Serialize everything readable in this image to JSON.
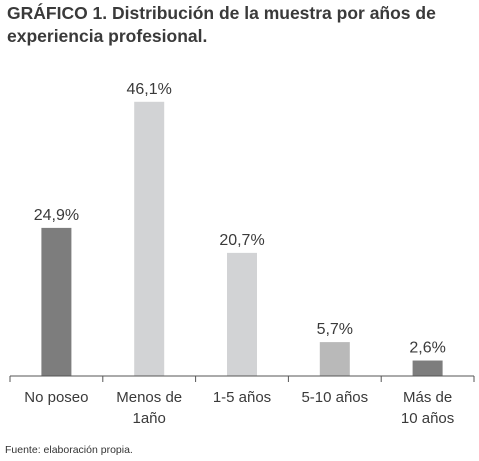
{
  "title": "GRÁFICO 1. Distribución de la muestra por años de experiencia profesional.",
  "source": "Fuente: elaboración propia.",
  "chart_data": {
    "type": "bar",
    "title": "GRÁFICO 1. Distribución de la muestra por años de experiencia profesional.",
    "categories": [
      [
        "No poseo"
      ],
      [
        "Menos de",
        "1año"
      ],
      [
        "1-5 años"
      ],
      [
        "5-10 años"
      ],
      [
        "Más de",
        "10 años"
      ]
    ],
    "values": [
      24.9,
      46.1,
      20.7,
      5.7,
      2.6
    ],
    "value_labels": [
      "24,9%",
      "46,1%",
      "20,7%",
      "5,7%",
      "2,6%"
    ],
    "colors": [
      "#7d7d7d",
      "#d2d3d5",
      "#d2d3d5",
      "#b9b9b9",
      "#7d7d7d"
    ],
    "xlabel": "",
    "ylabel": "",
    "ylim": [
      0,
      50
    ],
    "grid": false,
    "legend": "none"
  }
}
